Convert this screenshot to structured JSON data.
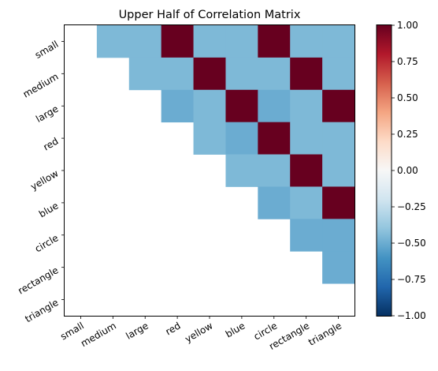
{
  "chart_data": {
    "type": "heatmap",
    "title": "Upper Half of Correlation Matrix",
    "xlabel": "",
    "ylabel": "",
    "x_categories": [
      "small",
      "medium",
      "large",
      "red",
      "yellow",
      "blue",
      "circle",
      "rectangle",
      "triangle"
    ],
    "y_categories": [
      "small",
      "medium",
      "large",
      "red",
      "yellow",
      "blue",
      "circle",
      "rectangle",
      "triangle"
    ],
    "values": [
      [
        null,
        -0.45,
        -0.45,
        1.0,
        -0.45,
        -0.45,
        1.0,
        -0.45,
        -0.45
      ],
      [
        null,
        null,
        -0.45,
        -0.45,
        1.0,
        -0.45,
        -0.45,
        1.0,
        -0.45
      ],
      [
        null,
        null,
        null,
        -0.5,
        -0.45,
        1.0,
        -0.5,
        -0.45,
        1.0
      ],
      [
        null,
        null,
        null,
        null,
        -0.45,
        -0.5,
        1.0,
        -0.45,
        -0.45
      ],
      [
        null,
        null,
        null,
        null,
        null,
        -0.45,
        -0.45,
        1.0,
        -0.45
      ],
      [
        null,
        null,
        null,
        null,
        null,
        null,
        -0.5,
        -0.45,
        1.0
      ],
      [
        null,
        null,
        null,
        null,
        null,
        null,
        null,
        -0.5,
        -0.5
      ],
      [
        null,
        null,
        null,
        null,
        null,
        null,
        null,
        null,
        -0.5
      ],
      [
        null,
        null,
        null,
        null,
        null,
        null,
        null,
        null,
        null
      ]
    ],
    "colorbar": {
      "colormap": "RdBu_r",
      "vmin": -1.0,
      "vmax": 1.0,
      "ticks": [
        -1.0,
        -0.75,
        -0.5,
        -0.25,
        0.0,
        0.25,
        0.5,
        0.75,
        1.0
      ],
      "tick_labels": [
        "−1.00",
        "−0.75",
        "−0.50",
        "−0.25",
        "0.00",
        "0.25",
        "0.50",
        "0.75",
        "1.00"
      ]
    },
    "grid": false
  }
}
